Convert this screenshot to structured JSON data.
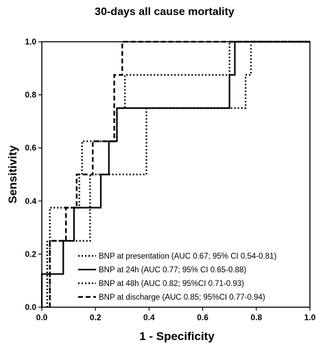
{
  "chart_data": {
    "type": "line",
    "title": "30-days all cause mortality",
    "xlabel": "1 - Specificity",
    "ylabel": "Sensitivity",
    "xlim": [
      0,
      1
    ],
    "ylim": [
      0,
      1
    ],
    "xticks": [
      "0.0",
      "0.2",
      "0.4",
      "0.6",
      "0.8",
      "1.0"
    ],
    "yticks": [
      "0.0",
      "0.2",
      "0.4",
      "0.6",
      "0.8",
      "1.0"
    ],
    "grid": false,
    "legend_position": "bottom-right",
    "series": [
      {
        "name": "BNP at presentation (AUC 0.67; 95% CI 0.54-0.81)",
        "style": "dotted",
        "color": "#000000",
        "points": [
          [
            0.03,
            0
          ],
          [
            0.03,
            0.125
          ],
          [
            0.03,
            0.25
          ],
          [
            0.1,
            0.25
          ],
          [
            0.1,
            0.25
          ],
          [
            0.18,
            0.25
          ],
          [
            0.18,
            0.375
          ],
          [
            0.18,
            0.5
          ],
          [
            0.18,
            0.5
          ],
          [
            0.39,
            0.5
          ],
          [
            0.39,
            0.625
          ],
          [
            0.39,
            0.75
          ],
          [
            0.39,
            0.75
          ],
          [
            0.76,
            0.75
          ],
          [
            0.76,
            0.875
          ],
          [
            0.78,
            0.875
          ],
          [
            0.78,
            1.0
          ],
          [
            1.0,
            1.0
          ]
        ]
      },
      {
        "name": "BNP at 24h (AUC 0.77; 95% CI 0.65-0.88)",
        "style": "solid",
        "color": "#000000",
        "points": [
          [
            0,
            0
          ],
          [
            0,
            0.125
          ],
          [
            0.08,
            0.125
          ],
          [
            0.08,
            0.25
          ],
          [
            0.12,
            0.25
          ],
          [
            0.12,
            0.375
          ],
          [
            0.22,
            0.375
          ],
          [
            0.22,
            0.5
          ],
          [
            0.25,
            0.5
          ],
          [
            0.25,
            0.625
          ],
          [
            0.28,
            0.625
          ],
          [
            0.28,
            0.75
          ],
          [
            0.7,
            0.75
          ],
          [
            0.7,
            0.875
          ],
          [
            0.72,
            0.875
          ],
          [
            0.72,
            1.0
          ],
          [
            1.0,
            1.0
          ]
        ]
      },
      {
        "name": "BNP at 48h (AUC 0.82; 95%CI 0.71-0.93)",
        "style": "dotted",
        "color": "#000000",
        "points": [
          [
            0.02,
            0
          ],
          [
            0.02,
            0.25
          ],
          [
            0.03,
            0.25
          ],
          [
            0.03,
            0.375
          ],
          [
            0.1,
            0.375
          ],
          [
            0.1,
            0.375
          ],
          [
            0.14,
            0.375
          ],
          [
            0.14,
            0.5
          ],
          [
            0.15,
            0.5
          ],
          [
            0.15,
            0.625
          ],
          [
            0.2,
            0.625
          ],
          [
            0.2,
            0.625
          ],
          [
            0.28,
            0.625
          ],
          [
            0.28,
            0.75
          ],
          [
            0.31,
            0.75
          ],
          [
            0.31,
            0.875
          ],
          [
            0.7,
            0.875
          ],
          [
            0.7,
            1.0
          ],
          [
            1.0,
            1.0
          ]
        ]
      },
      {
        "name": "BNP at discharge (AUC 0.85; 95%CI 0.77-0.94)",
        "style": "dashed",
        "color": "#000000",
        "points": [
          [
            0.03,
            0
          ],
          [
            0.03,
            0.25
          ],
          [
            0.09,
            0.25
          ],
          [
            0.09,
            0.375
          ],
          [
            0.13,
            0.375
          ],
          [
            0.13,
            0.5
          ],
          [
            0.19,
            0.5
          ],
          [
            0.19,
            0.625
          ],
          [
            0.27,
            0.625
          ],
          [
            0.27,
            0.875
          ],
          [
            0.3,
            0.875
          ],
          [
            0.3,
            1.0
          ],
          [
            1.0,
            1.0
          ]
        ]
      }
    ]
  }
}
